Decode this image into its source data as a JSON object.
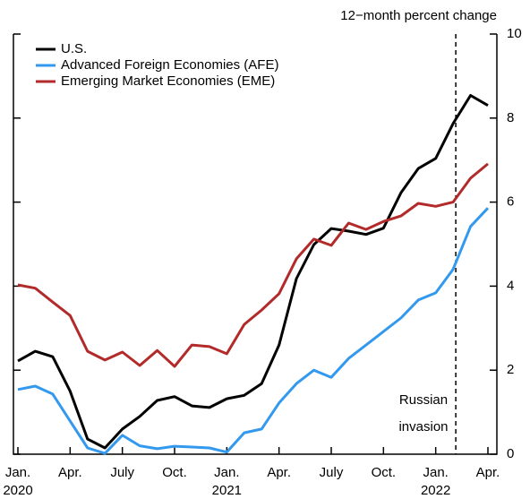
{
  "chart_data": {
    "type": "line",
    "y_axis_label": "12−month percent change",
    "categories": [
      "Jan. 2020",
      null,
      null,
      "Apr.",
      null,
      null,
      "July",
      null,
      null,
      "Oct.",
      null,
      null,
      "Jan. 2021",
      null,
      null,
      "Apr.",
      null,
      null,
      "July",
      null,
      null,
      "Oct.",
      null,
      null,
      "Jan. 2022",
      null,
      null,
      "Apr."
    ],
    "series": [
      {
        "name": "U.S.",
        "color": "#000000",
        "values": [
          2.22,
          2.45,
          2.32,
          1.5,
          0.36,
          0.15,
          0.6,
          0.9,
          1.28,
          1.37,
          1.15,
          1.11,
          1.32,
          1.4,
          1.68,
          2.6,
          4.18,
          4.99,
          5.37,
          5.31,
          5.23,
          5.38,
          6.22,
          6.8,
          7.04,
          7.87,
          8.54,
          8.3
        ]
      },
      {
        "name": "Advanced Foreign Economies (AFE)",
        "color": "#3399ee",
        "values": [
          1.54,
          1.62,
          1.43,
          0.79,
          0.15,
          0.02,
          0.45,
          0.2,
          0.13,
          0.19,
          0.17,
          0.15,
          0.05,
          0.51,
          0.6,
          1.22,
          1.68,
          2.0,
          1.83,
          2.28,
          2.6,
          2.92,
          3.24,
          3.67,
          3.84,
          4.4,
          5.42,
          5.86
        ]
      },
      {
        "name": "Emerging Market Economies (EME)",
        "color": "#b22a2a",
        "values": [
          4.03,
          3.95,
          3.62,
          3.3,
          2.45,
          2.24,
          2.43,
          2.11,
          2.47,
          2.09,
          2.6,
          2.56,
          2.39,
          3.09,
          3.43,
          3.82,
          4.65,
          5.12,
          4.97,
          5.5,
          5.35,
          5.54,
          5.67,
          5.97,
          5.9,
          6.0,
          6.57,
          6.91
        ]
      }
    ],
    "annotation": [
      "Russian",
      "invasion"
    ],
    "ylim": [
      0,
      10
    ],
    "yticks": [
      0,
      2,
      4,
      6,
      8,
      10
    ],
    "grid": false,
    "legend": "upper left"
  }
}
